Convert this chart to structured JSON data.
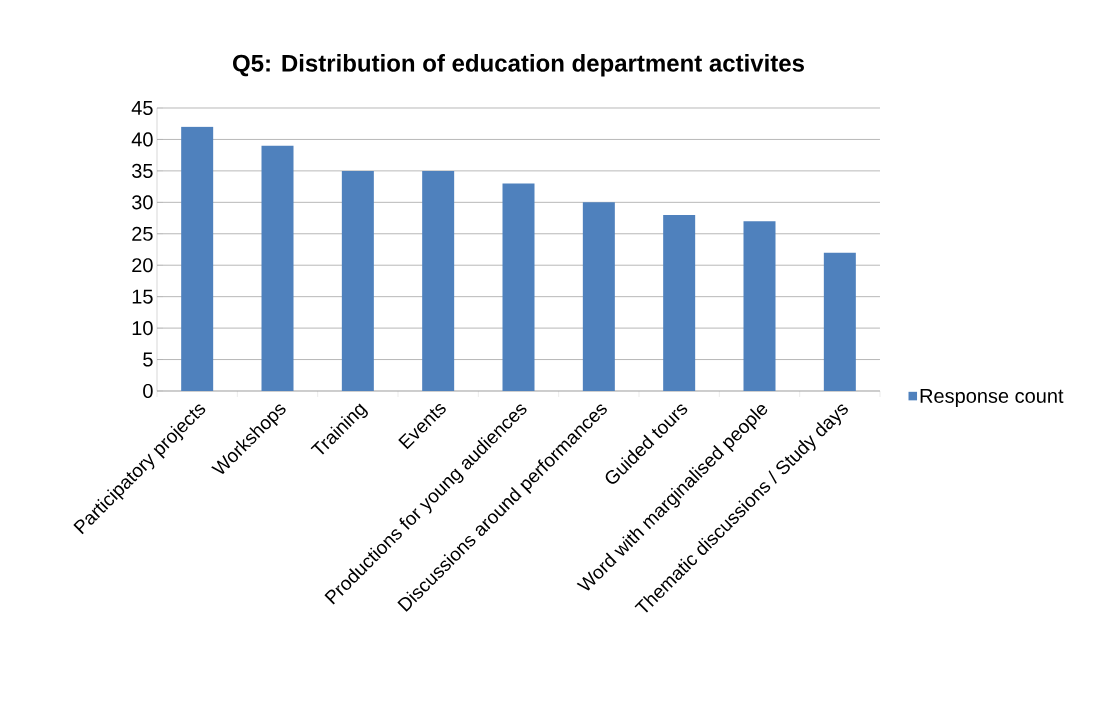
{
  "chart_data": {
    "type": "bar",
    "title": "Q5: Distribution of education department activites",
    "categories": [
      "Participatory projects",
      "Workshops",
      "Training",
      "Events",
      "Productions for young audiences",
      "Discussions around performances",
      "Guided tours",
      "Word with marginalised people",
      "Thematic discussions / Study days"
    ],
    "series": [
      {
        "name": "Response count",
        "color": "#4f81bd",
        "values": [
          42,
          39,
          35,
          35,
          33,
          30,
          28,
          27,
          22
        ]
      }
    ],
    "ylim": [
      0,
      45
    ],
    "yticks": [
      0,
      5,
      10,
      15,
      20,
      25,
      30,
      35,
      40,
      45
    ],
    "grid": "y",
    "legend": "right"
  }
}
